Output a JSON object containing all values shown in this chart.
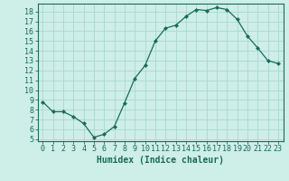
{
  "x": [
    0,
    1,
    2,
    3,
    4,
    5,
    6,
    7,
    8,
    9,
    10,
    11,
    12,
    13,
    14,
    15,
    16,
    17,
    18,
    19,
    20,
    21,
    22,
    23
  ],
  "y": [
    8.8,
    7.8,
    7.8,
    7.3,
    6.6,
    5.2,
    5.5,
    6.3,
    8.7,
    11.2,
    12.5,
    15.0,
    16.3,
    16.6,
    17.5,
    18.2,
    18.1,
    18.4,
    18.2,
    17.2,
    15.5,
    14.3,
    13.0,
    12.7
  ],
  "xlabel": "Humidex (Indice chaleur)",
  "xlim": [
    -0.5,
    23.5
  ],
  "ylim": [
    4.8,
    18.8
  ],
  "yticks": [
    5,
    6,
    7,
    8,
    9,
    10,
    11,
    12,
    13,
    14,
    15,
    16,
    17,
    18
  ],
  "xticks": [
    0,
    1,
    2,
    3,
    4,
    5,
    6,
    7,
    8,
    9,
    10,
    11,
    12,
    13,
    14,
    15,
    16,
    17,
    18,
    19,
    20,
    21,
    22,
    23
  ],
  "line_color": "#1a6b5a",
  "marker_color": "#1a6b5a",
  "bg_color": "#ceeee8",
  "grid_color": "#a8d8d0",
  "axis_color": "#1a6b5a",
  "label_color": "#1a6b5a",
  "xlabel_fontsize": 7,
  "tick_fontsize": 6
}
